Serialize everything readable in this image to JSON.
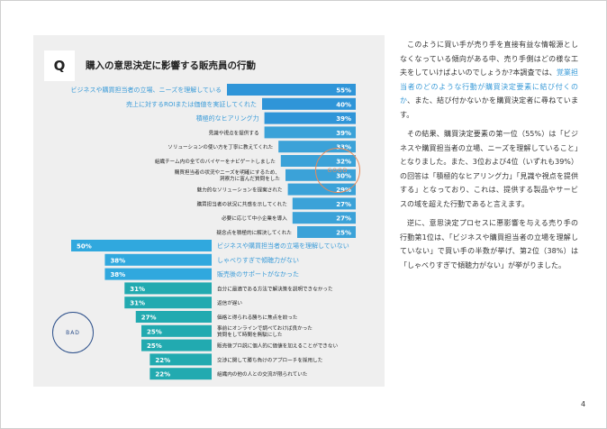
{
  "header": {
    "q_label": "Q",
    "title": "購入の意思決定に影響する販売員の行動"
  },
  "stamps": {
    "good": "GOOD",
    "bad": "BAD"
  },
  "colors": {
    "good_highlight": "#2f95d8",
    "good_normal": "#2b9bd6",
    "bad_highlight": "#30a8de",
    "bad_normal": "#22aab0",
    "label_highlight": "#3a9bd8",
    "label_normal": "#222222"
  },
  "chart_data": [
    {
      "type": "bar",
      "orientation": "horizontal",
      "group": "good",
      "direction": "right",
      "categories": [
        "ビジネスや購買担当者の立場、ニーズを理解している",
        "売上に対するROIまたは価値を実証してくれた",
        "積極的なヒアリング力",
        "見識や視点を提供する",
        "ソリューションの使い方を丁寧に教えてくれた",
        "組織チーム内の全てのバイヤーをナビゲートしました",
        "購買担当者の状況やニーズを明確にするため、洞察力に富んだ質問をした",
        "魅力的なソリューションを提案された",
        "購買担当者の状況に共感を示してくれた",
        "必要に応じて中小企業を導入",
        "疑念点を積極的に解決してくれた"
      ],
      "values": [
        55,
        40,
        39,
        39,
        33,
        32,
        30,
        29,
        27,
        27,
        25
      ],
      "value_labels": [
        "55%",
        "40%",
        "39%",
        "39%",
        "33%",
        "32%",
        "30%",
        "29%",
        "27%",
        "27%",
        "25%"
      ],
      "highlighted": [
        true,
        true,
        true,
        false,
        false,
        false,
        false,
        false,
        false,
        false,
        false
      ]
    },
    {
      "type": "bar",
      "orientation": "horizontal",
      "group": "bad",
      "direction": "left",
      "categories": [
        "ビジネスや購買担当者の立場を理解していない",
        "しゃべりすぎで傾聴力がない",
        "販売後のサポートがなかった",
        "自分に最適である方法で解決策を説明できなかった",
        "返信が遅い",
        "価格と得られる勝ちに焦点を絞った",
        "事前にオンラインで調べておけば良かった質問をして時間を無駄にした",
        "販売後プロ説に個人的に価値を加えることができない",
        "交渉に関して勝ち負けのアプローチを採用した",
        "組織内の他の人との交流が限られていた"
      ],
      "values": [
        50,
        38,
        38,
        31,
        31,
        27,
        25,
        25,
        22,
        22
      ],
      "value_labels": [
        "50%",
        "38%",
        "38%",
        "31%",
        "31%",
        "27%",
        "25%",
        "25%",
        "22%",
        "22%"
      ],
      "highlighted": [
        true,
        true,
        true,
        false,
        false,
        false,
        false,
        false,
        false,
        false
      ]
    }
  ],
  "body": {
    "p1_a": "このように買い手が売り手を直接有益な情報源としなくなっている傾向がある中、売り手側はどの様な工夫をしていけばよいのでしょうか?本調査では、",
    "p1_hl": "覚業担当者のどのような行動が購買決定要素に結び付くのか",
    "p1_b": "、また、結び付かないかを購買決定者に尋ねています。",
    "p2": "その結果、購買決定要素の第一位（55%）は「ビジネスや購買担当者の立場、ニーズを理解していること」となりました。また、3位および4位（いずれも39%）の回答は「積極的なヒアリング力」「見識や視点を提供する」となっており、これは、提供する製品やサービスの域を超えた行動であると言えます。",
    "p3": "逆に、意思決定プロセスに悪影響を与える売り手の行動第1位は、「ビジネスや購買担当者の立場を理解していない」で買い手の半数が挙げ、第2位（38%）は「しゃべりすぎで傾聴力がない」が挙がりました。"
  },
  "page_number": "4"
}
